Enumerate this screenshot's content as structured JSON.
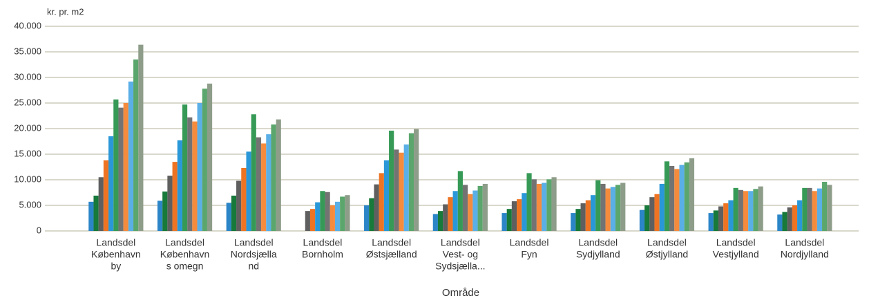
{
  "chart_data": {
    "type": "bar",
    "y_label": "kr. pr. m2",
    "x_label": "Område",
    "categories": [
      [
        "Landsdel",
        "København",
        "by"
      ],
      [
        "Landsdel",
        "København",
        "s omegn"
      ],
      [
        "Landsdel",
        "Nordsjælla",
        "nd"
      ],
      [
        "Landsdel",
        "Bornholm"
      ],
      [
        "Landsdel",
        "Østsjælland"
      ],
      [
        "Landsdel",
        "Vest- og",
        "Sydsjælla..."
      ],
      [
        "Landsdel",
        "Fyn"
      ],
      [
        "Landsdel",
        "Sydjylland"
      ],
      [
        "Landsdel",
        "Østjylland"
      ],
      [
        "Landsdel",
        "Vestjylland"
      ],
      [
        "Landsdel",
        "Nordjylland"
      ]
    ],
    "series": [
      {
        "color": "#2b85c7",
        "values": [
          5700,
          5900,
          5500,
          null,
          5000,
          3300,
          3500,
          3500,
          4100,
          3500,
          3200
        ]
      },
      {
        "color": "#17793a",
        "values": [
          6900,
          7700,
          6900,
          null,
          6400,
          3900,
          4300,
          4300,
          5000,
          4000,
          3700
        ]
      },
      {
        "color": "#5f5f5f",
        "values": [
          10500,
          10800,
          9800,
          3900,
          9100,
          5200,
          5800,
          5400,
          6600,
          4800,
          4600
        ]
      },
      {
        "color": "#ee7423",
        "values": [
          13800,
          13500,
          12300,
          4300,
          11300,
          6600,
          6200,
          6000,
          7200,
          5400,
          5000
        ]
      },
      {
        "color": "#2a98d8",
        "values": [
          18500,
          17700,
          15500,
          5600,
          13800,
          7800,
          7400,
          7000,
          9200,
          6000,
          6000
        ]
      },
      {
        "color": "#369a56",
        "values": [
          25700,
          24700,
          22800,
          7800,
          19600,
          11700,
          11300,
          9900,
          13600,
          8400,
          8400
        ]
      },
      {
        "color": "#737373",
        "values": [
          24100,
          22200,
          18300,
          7600,
          15900,
          9000,
          10100,
          9200,
          12700,
          8000,
          8400
        ]
      },
      {
        "color": "#f58b3d",
        "values": [
          25000,
          21400,
          17100,
          5000,
          15300,
          7200,
          9200,
          8300,
          12100,
          7800,
          7800
        ]
      },
      {
        "color": "#5aafe6",
        "values": [
          29200,
          25000,
          18900,
          5700,
          16900,
          7900,
          9400,
          8600,
          12900,
          7800,
          8300
        ]
      },
      {
        "color": "#5aa66c",
        "values": [
          33500,
          27800,
          20800,
          6700,
          19100,
          8800,
          10100,
          9000,
          13400,
          8200,
          9600
        ]
      },
      {
        "color": "#8e9d89",
        "values": [
          36400,
          28800,
          21800,
          7000,
          19900,
          9200,
          10500,
          9400,
          14200,
          8700,
          9000
        ]
      }
    ],
    "ylim": [
      0,
      40000
    ],
    "yticks": [
      0,
      {
        "value": 5000,
        "label": "5.000"
      },
      {
        "value": 10000,
        "label": "10.000"
      },
      {
        "value": 15000,
        "label": "15.000"
      },
      {
        "value": 20000,
        "label": "20.000"
      },
      {
        "value": 25000,
        "label": "25.000"
      },
      {
        "value": 30000,
        "label": "30.000"
      },
      {
        "value": 35000,
        "label": "35.000"
      },
      {
        "value": 40000,
        "label": "40.000"
      }
    ],
    "grid": true
  }
}
